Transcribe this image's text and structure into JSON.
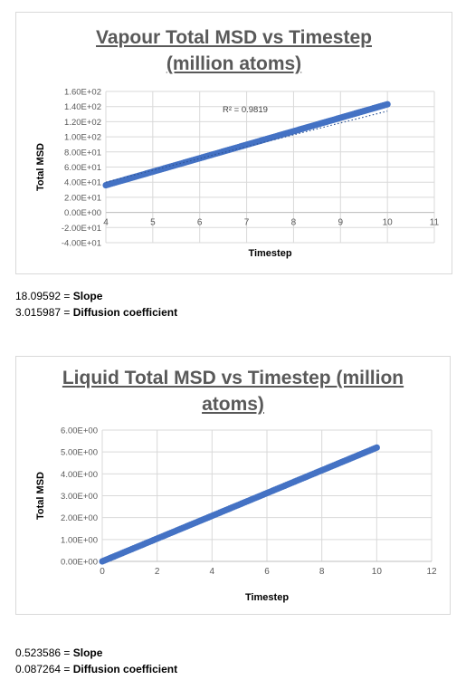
{
  "chart_data": [
    {
      "type": "scatter",
      "title": "Vapour Total MSD vs Timestep",
      "subtitle": "(million atoms)",
      "xlabel": "Timestep",
      "ylabel": "Total MSD",
      "xlim": [
        4,
        11
      ],
      "ylim": [
        -40,
        160
      ],
      "x_ticks": [
        "4",
        "5",
        "6",
        "7",
        "8",
        "9",
        "10",
        "11"
      ],
      "y_ticks": [
        "-4.00E+01",
        "-2.00E+01",
        "0.00E+00",
        "2.00E+01",
        "4.00E+01",
        "6.00E+01",
        "8.00E+01",
        "1.00E+02",
        "1.20E+02",
        "1.40E+02",
        "1.60E+02"
      ],
      "grid": true,
      "series": [
        {
          "x_start": 4,
          "x_end": 10,
          "y_start": 36,
          "y_end": 143,
          "color": "#4472c4"
        }
      ],
      "trendline": {
        "type": "linear",
        "x_start": 4,
        "x_end": 10,
        "y_start": 40,
        "y_end": 134,
        "r2_label": "R² = 0.9819"
      }
    },
    {
      "type": "scatter",
      "title": "Liquid Total MSD vs Timestep (million",
      "subtitle": "atoms)",
      "xlabel": "Timestep",
      "ylabel": "Total MSD",
      "xlim": [
        0,
        12
      ],
      "ylim": [
        0,
        6
      ],
      "x_ticks": [
        "0",
        "2",
        "4",
        "6",
        "8",
        "10",
        "12"
      ],
      "y_ticks": [
        "0.00E+00",
        "1.00E+00",
        "2.00E+00",
        "3.00E+00",
        "4.00E+00",
        "5.00E+00",
        "6.00E+00"
      ],
      "grid": true,
      "series": [
        {
          "x_start": 0,
          "x_end": 10,
          "y_start": 0,
          "y_end": 5.2,
          "color": "#4472c4"
        }
      ]
    }
  ],
  "notes": [
    {
      "value": "18.09592 = ",
      "label": "Slope"
    },
    {
      "value": "3.015987 = ",
      "label": "Diffusion coefficient"
    },
    {
      "value": "0.523586 = ",
      "label": "Slope"
    },
    {
      "value": "0.087264 = ",
      "label": "Diffusion coefficient"
    }
  ]
}
